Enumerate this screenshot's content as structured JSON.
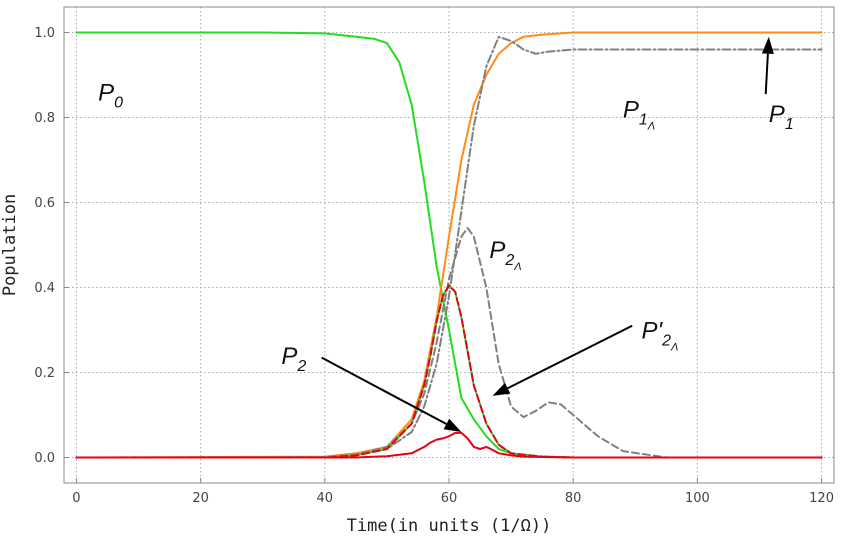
{
  "chart_data": {
    "type": "line",
    "xlabel": "Time(in units (1/Ω))",
    "ylabel": "Population",
    "xlim": [
      -2,
      122
    ],
    "ylim": [
      -0.06,
      1.06
    ],
    "xticks": [
      0,
      20,
      40,
      60,
      80,
      100,
      120
    ],
    "yticks": [
      0.0,
      0.2,
      0.4,
      0.6,
      0.8,
      1.0
    ],
    "x_tick_labels": [
      "0",
      "20",
      "40",
      "60",
      "80",
      "100",
      "120"
    ],
    "y_tick_labels": [
      "0.0",
      "0.2",
      "0.4",
      "0.6",
      "0.8",
      "1.0"
    ],
    "grid": true,
    "series": [
      {
        "name": "P0",
        "color": "#22dd22",
        "style": "solid",
        "x": [
          0,
          30,
          40,
          45,
          48,
          50,
          52,
          54,
          56,
          58,
          60,
          62,
          64,
          66,
          68,
          70,
          72,
          75,
          80,
          90,
          120
        ],
        "y": [
          1.0,
          1.0,
          0.998,
          0.99,
          0.985,
          0.975,
          0.93,
          0.83,
          0.65,
          0.45,
          0.3,
          0.14,
          0.09,
          0.05,
          0.02,
          0.01,
          0.005,
          0.002,
          0.0,
          0.0,
          0.0
        ]
      },
      {
        "name": "P1",
        "color": "#ff8c1a",
        "style": "solid",
        "x": [
          0,
          40,
          45,
          50,
          54,
          56,
          58,
          60,
          62,
          64,
          66,
          68,
          70,
          72,
          75,
          80,
          90,
          120
        ],
        "y": [
          0.0,
          0.002,
          0.01,
          0.025,
          0.09,
          0.18,
          0.33,
          0.52,
          0.7,
          0.83,
          0.9,
          0.95,
          0.975,
          0.99,
          0.995,
          1.0,
          1.0,
          1.0
        ]
      },
      {
        "name": "P1_Λ",
        "color": "#808080",
        "style": "dashdot",
        "x": [
          0,
          40,
          45,
          50,
          54,
          56,
          58,
          60,
          62,
          64,
          66,
          68,
          70,
          72,
          74,
          76,
          80,
          90,
          120
        ],
        "y": [
          0.0,
          0.0,
          0.005,
          0.02,
          0.06,
          0.12,
          0.22,
          0.38,
          0.58,
          0.78,
          0.92,
          0.99,
          0.98,
          0.96,
          0.95,
          0.955,
          0.96,
          0.96,
          0.96
        ]
      },
      {
        "name": "P2_Λ",
        "color": "#808080",
        "style": "dashed",
        "x": [
          0,
          40,
          45,
          50,
          54,
          56,
          58,
          60,
          62,
          63,
          64,
          66,
          68,
          70,
          72,
          74,
          76,
          78,
          80,
          84,
          88,
          95,
          120
        ],
        "y": [
          0.0,
          0.001,
          0.007,
          0.025,
          0.08,
          0.15,
          0.27,
          0.42,
          0.52,
          0.54,
          0.52,
          0.4,
          0.22,
          0.12,
          0.095,
          0.11,
          0.13,
          0.125,
          0.1,
          0.05,
          0.015,
          0.0,
          0.0
        ]
      },
      {
        "name": "P'2_Λ",
        "color": "#22dd22",
        "style": "solid",
        "x": [
          0,
          40,
          45,
          50,
          54,
          56,
          57,
          58,
          59,
          60,
          61,
          62,
          63,
          64,
          66,
          68,
          70,
          75,
          80,
          120
        ],
        "y": [
          0.0,
          0.0,
          0.005,
          0.02,
          0.08,
          0.17,
          0.24,
          0.32,
          0.38,
          0.405,
          0.39,
          0.33,
          0.25,
          0.17,
          0.08,
          0.03,
          0.01,
          0.002,
          0.0,
          0.0
        ]
      },
      {
        "name": "P'2_Λ",
        "color": "#e6001a",
        "style": "dashed",
        "x": [
          0,
          40,
          45,
          50,
          54,
          56,
          57,
          58,
          59,
          60,
          61,
          62,
          63,
          64,
          66,
          68,
          70,
          75,
          80,
          120
        ],
        "y": [
          0.0,
          0.0,
          0.005,
          0.02,
          0.08,
          0.17,
          0.24,
          0.32,
          0.38,
          0.405,
          0.39,
          0.33,
          0.25,
          0.17,
          0.08,
          0.03,
          0.01,
          0.002,
          0.0,
          0.0
        ]
      },
      {
        "name": "P2",
        "color": "#e6001a",
        "style": "solid",
        "x": [
          0,
          45,
          50,
          54,
          56,
          57,
          58,
          59,
          60,
          61,
          62,
          63,
          64,
          65,
          66,
          67,
          68,
          70,
          72,
          80,
          120
        ],
        "y": [
          0.0,
          0.0,
          0.003,
          0.01,
          0.025,
          0.035,
          0.042,
          0.045,
          0.05,
          0.058,
          0.058,
          0.045,
          0.025,
          0.02,
          0.025,
          0.018,
          0.01,
          0.005,
          0.002,
          0.0,
          0.0
        ]
      }
    ],
    "annotations": [
      {
        "id": "p0",
        "base": "P",
        "sub": "0",
        "x": 3.5,
        "y": 0.84
      },
      {
        "id": "p1",
        "base": "P",
        "sub": "1",
        "x": 111.5,
        "y": 0.79
      },
      {
        "id": "p1lambda",
        "base": "P",
        "sub": "1",
        "subsub": "Λ",
        "x": 88,
        "y": 0.8
      },
      {
        "id": "p2lambda",
        "base": "P",
        "sub": "2",
        "subsub": "Λ",
        "x": 66.5,
        "y": 0.47
      },
      {
        "id": "p2primelambda",
        "base": "P'",
        "sub": "2",
        "subsub": "Λ",
        "x": 91,
        "y": 0.28
      },
      {
        "id": "p2",
        "base": "P",
        "sub": "2",
        "x": 33,
        "y": 0.22
      }
    ],
    "arrows": [
      {
        "id": "arrow-p1",
        "from": [
          111,
          0.855
        ],
        "to": [
          111.5,
          0.99
        ]
      },
      {
        "id": "arrow-p2",
        "from": [
          39.5,
          0.235
        ],
        "to": [
          62,
          0.06
        ]
      },
      {
        "id": "arrow-p2prime",
        "from": [
          89.5,
          0.31
        ],
        "to": [
          67,
          0.145
        ]
      }
    ]
  }
}
